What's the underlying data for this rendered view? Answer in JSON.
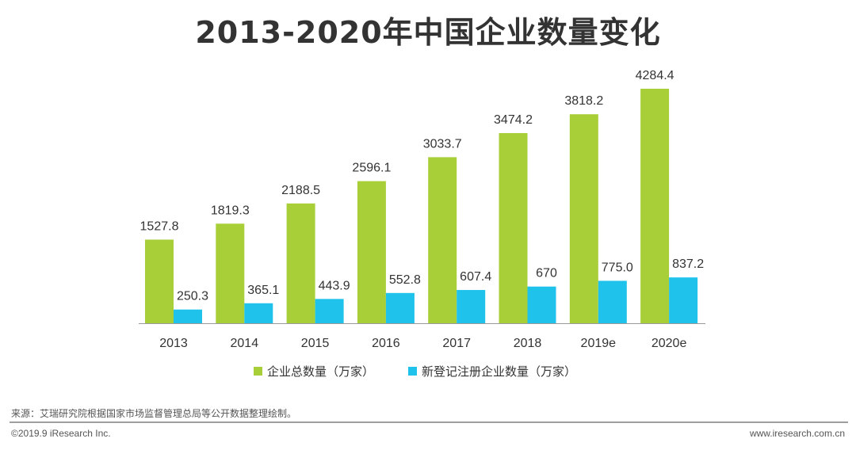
{
  "title": "2013-2020年中国企业数量变化",
  "source_note": "来源：艾瑞研究院根据国家市场监督管理总局等公开数据整理绘制。",
  "footer": {
    "copyright": "©2019.9 iResearch Inc.",
    "website": "www.iresearch.com.cn"
  },
  "colors": {
    "green": "#a9cf38",
    "cyan": "#1fc2ea",
    "axis": "#999999"
  },
  "chart_data": {
    "type": "bar",
    "title": "2013-2020年中国企业数量变化",
    "categories": [
      "2013",
      "2014",
      "2015",
      "2016",
      "2017",
      "2018",
      "2019e",
      "2020e"
    ],
    "series": [
      {
        "name": "企业总数量（万家）",
        "color": "#a9cf38",
        "values": [
          1527.8,
          1819.3,
          2188.5,
          2596.1,
          3033.7,
          3474.2,
          3818.2,
          4284.4
        ],
        "labels": [
          "1527.8",
          "1819.3",
          "2188.5",
          "2596.1",
          "3033.7",
          "3474.2",
          "3818.2",
          "4284.4"
        ]
      },
      {
        "name": "新登记注册企业数量（万家）",
        "color": "#1fc2ea",
        "values": [
          250.3,
          365.1,
          443.9,
          552.8,
          607.4,
          670,
          775.0,
          837.2
        ],
        "labels": [
          "250.3",
          "365.1",
          "443.9",
          "552.8",
          "607.4",
          "670",
          "775.0",
          "837.2"
        ]
      }
    ],
    "legend_position": "bottom",
    "grid": false,
    "ylim": [
      0,
      4284.4
    ]
  }
}
